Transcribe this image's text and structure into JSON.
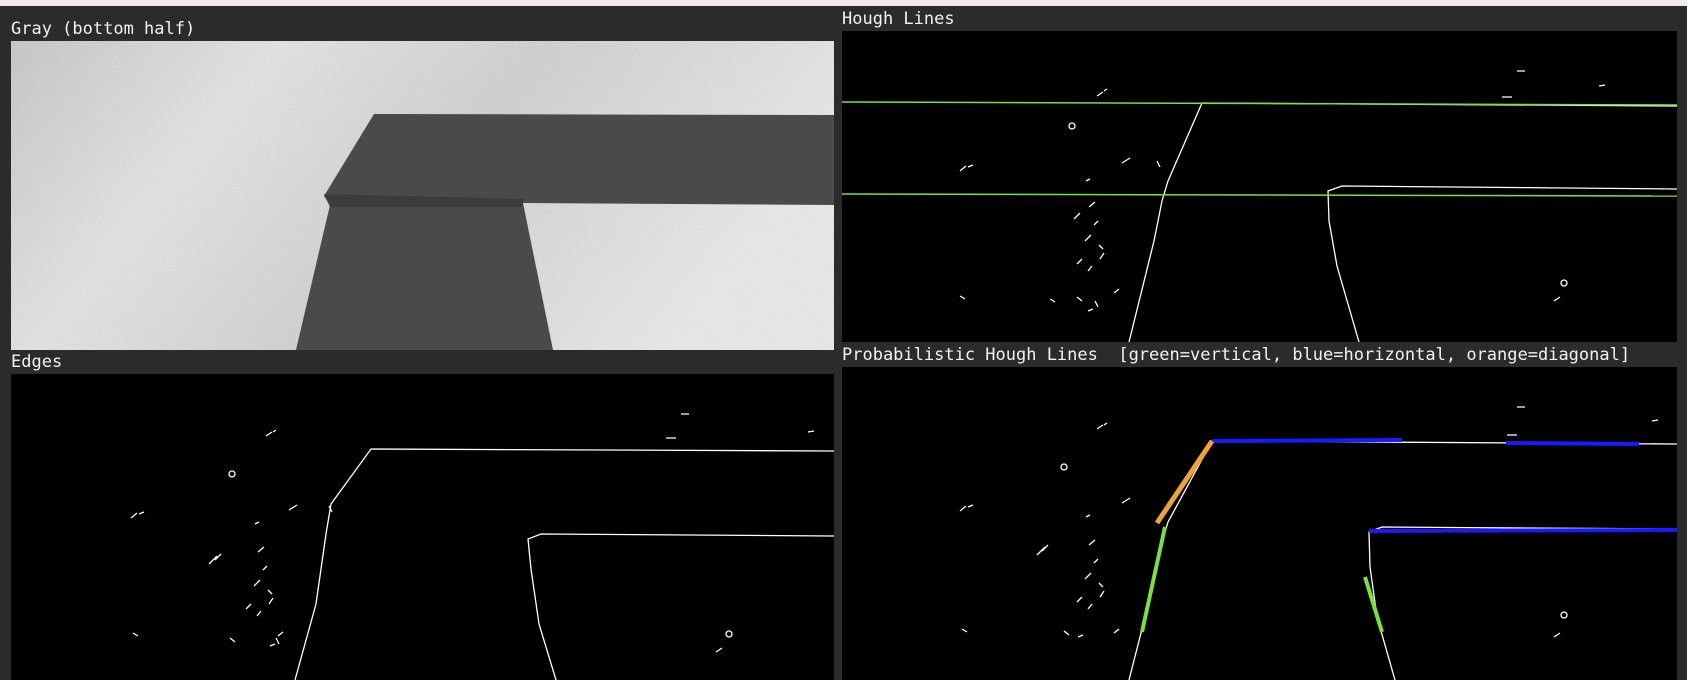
{
  "window": {
    "panels": {
      "gray": {
        "title": "Gray (bottom half)"
      },
      "hough": {
        "title": "Hough Lines"
      },
      "edges": {
        "title": "Edges"
      },
      "prob_hough": {
        "title": "Probabilistic Hough Lines  [green=vertical, blue=horizontal, orange=diagonal]"
      }
    },
    "colors": {
      "background": "#2b2b2b",
      "line_green": "#7dde3f",
      "line_blue": "#1a1aff",
      "line_orange": "#f0a23a",
      "edge_white": "#ffffff"
    }
  }
}
